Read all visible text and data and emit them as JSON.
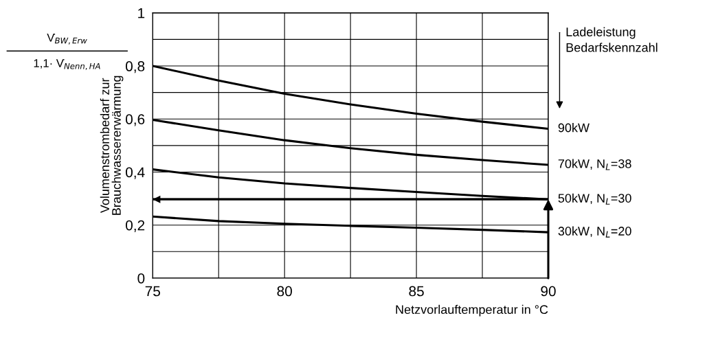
{
  "chart_data": {
    "type": "line",
    "xlabel": "Netzvorlauftemperatur in °C",
    "ylabel": "Volumenstrombedarf zur\nBrauchwassererwärmung",
    "x": [
      75,
      77.5,
      80,
      82.5,
      85,
      87.5,
      90
    ],
    "series": [
      {
        "name": "90kW",
        "color": "#000000",
        "values": [
          0.8,
          0.745,
          0.695,
          0.655,
          0.62,
          0.59,
          0.563
        ]
      },
      {
        "name": "70kW, N$_{L}$=38",
        "color": "#000000",
        "values": [
          0.597,
          0.557,
          0.52,
          0.49,
          0.465,
          0.445,
          0.427
        ]
      },
      {
        "name": "50kW, N$_{L}$=30",
        "color": "#000000",
        "values": [
          0.41,
          0.38,
          0.357,
          0.34,
          0.325,
          0.31,
          0.297
        ]
      },
      {
        "name": "30kW, N$_{L}$=20",
        "color": "#000000",
        "values": [
          0.232,
          0.215,
          0.205,
          0.197,
          0.19,
          0.182,
          0.173
        ]
      }
    ],
    "annotations": [
      "Ladeleistung\nBedarfskennzahl",
      "V̇$_{BW,Erw}$",
      "1,1· V̇$_{Nenn,HA}$"
    ],
    "xlim": [
      75,
      90
    ],
    "ylim": [
      0,
      1
    ],
    "xticks": [
      75,
      {
        "value": 77.5,
        "label": null
      },
      80,
      {
        "value": 82.5,
        "label": null
      },
      85,
      {
        "value": 87.5,
        "label": null
      },
      90
    ],
    "yticks": [
      0,
      {
        "value": 0.1,
        "label": null
      },
      {
        "value": 0.2,
        "label": "0,2"
      },
      {
        "value": 0.3,
        "label": null
      },
      {
        "value": 0.4,
        "label": "0,4"
      },
      {
        "value": 0.5,
        "label": null
      },
      {
        "value": 0.6,
        "label": "0,6"
      },
      {
        "value": 0.7,
        "label": null
      },
      {
        "value": 0.8,
        "label": "0,8"
      },
      {
        "value": 0.9,
        "label": null
      },
      1
    ],
    "ref_lines": [
      {
        "axis": "y",
        "value": 0.297,
        "color": "#000000",
        "line_style": "solid"
      }
    ],
    "grid": true,
    "legend": "right",
    "marker": "none",
    "line_style": "solid"
  }
}
